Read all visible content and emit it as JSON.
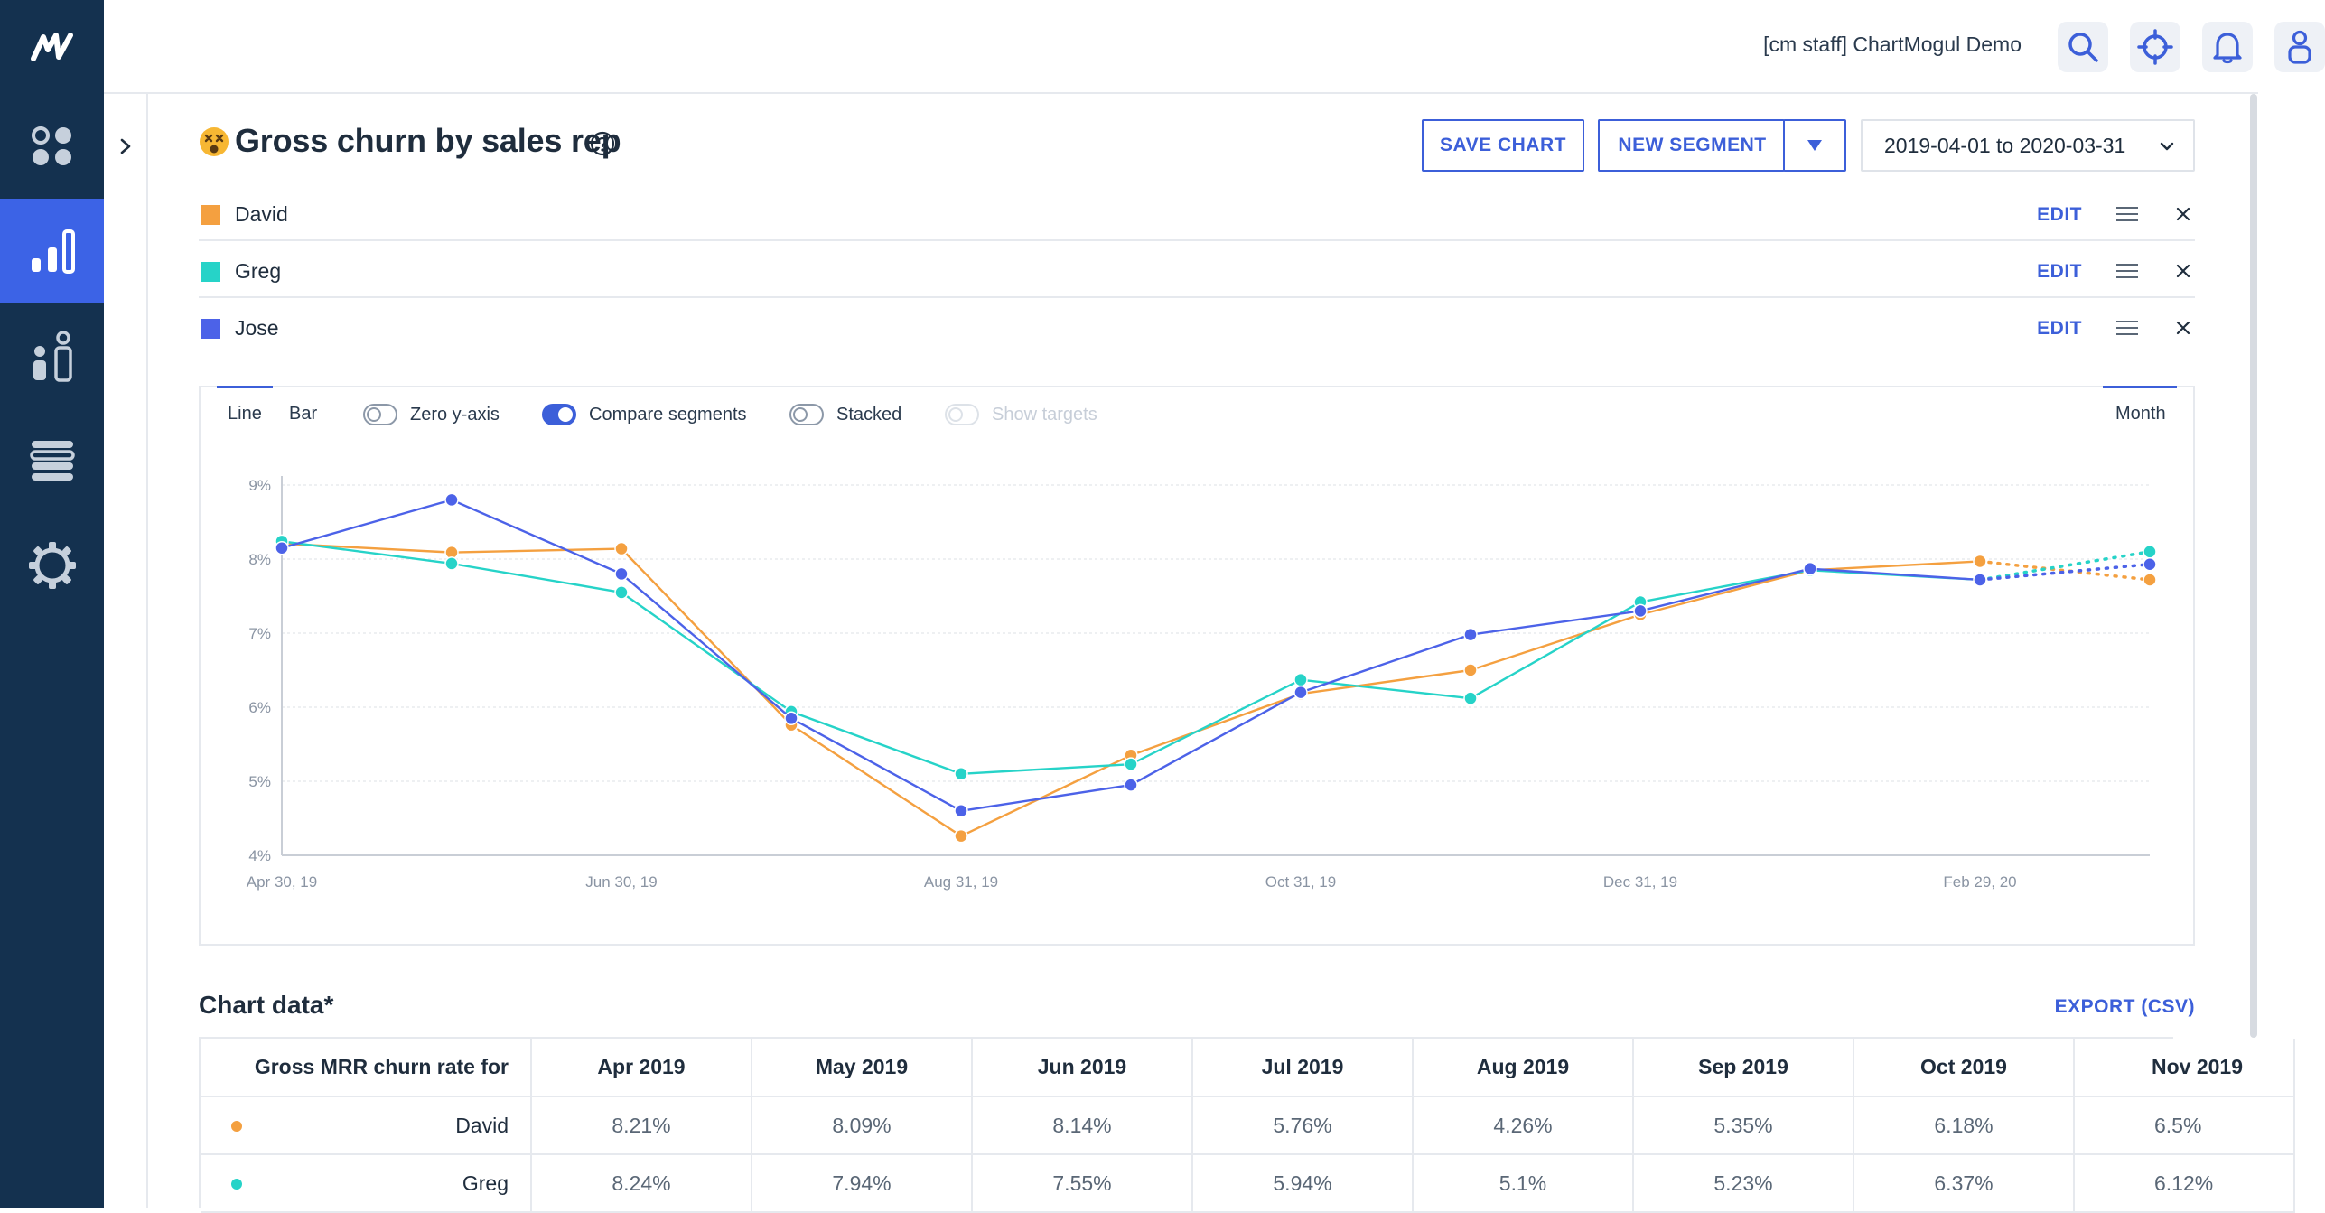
{
  "account": {
    "name": "[cm staff] ChartMogul Demo"
  },
  "nav": {
    "items": [
      {
        "name": "dashboard",
        "icon": "dashboard-icon",
        "active": false
      },
      {
        "name": "reports",
        "icon": "bar-chart-icon",
        "active": true
      },
      {
        "name": "customers",
        "icon": "customers-icon",
        "active": false
      },
      {
        "name": "lists",
        "icon": "list-icon",
        "active": false
      },
      {
        "name": "settings",
        "icon": "gear-icon",
        "active": false
      }
    ]
  },
  "top_icons": [
    "search-icon",
    "crosshair-icon",
    "bell-icon",
    "user-icon"
  ],
  "page": {
    "title": "Gross churn by sales rep",
    "save_label": "SAVE CHART",
    "new_segment_label": "NEW SEGMENT",
    "date_range": "2019-04-01 to 2020-03-31"
  },
  "segments": [
    {
      "name": "David",
      "color": "#f4a040",
      "edit_label": "EDIT"
    },
    {
      "name": "Greg",
      "color": "#26d3c8",
      "edit_label": "EDIT"
    },
    {
      "name": "Jose",
      "color": "#4c62e8",
      "edit_label": "EDIT"
    }
  ],
  "chart_controls": {
    "tab_line": "Line",
    "tab_bar": "Bar",
    "zero_y_axis": "Zero y-axis",
    "compare_segments": "Compare segments",
    "stacked": "Stacked",
    "show_targets": "Show targets",
    "interval": "Month",
    "toggle_states": {
      "zero_y_axis": false,
      "compare_segments": true,
      "stacked": false,
      "show_targets": false
    }
  },
  "chart_data": {
    "type": "line",
    "x": [
      "Apr 30, 19",
      "May 31, 19",
      "Jun 30, 19",
      "Jul 31, 19",
      "Aug 31, 19",
      "Sep 30, 19",
      "Oct 31, 19",
      "Nov 30, 19",
      "Dec 31, 19",
      "Jan 31, 20",
      "Feb 29, 20",
      "Mar 31, 20"
    ],
    "x_tick_labels": [
      "Apr 30, 19",
      "Jun 30, 19",
      "Aug 31, 19",
      "Oct 31, 19",
      "Dec 31, 19",
      "Feb 29, 20"
    ],
    "y_ticks": [
      "4%",
      "5%",
      "6%",
      "7%",
      "8%",
      "9%"
    ],
    "ylim": [
      4,
      9
    ],
    "grid": true,
    "projected_last_point": true,
    "series": [
      {
        "name": "David",
        "color": "#f4a040",
        "values": [
          8.21,
          8.09,
          8.14,
          5.76,
          4.26,
          5.35,
          6.18,
          6.5,
          7.25,
          7.85,
          7.97,
          7.72
        ]
      },
      {
        "name": "Greg",
        "color": "#26d3c8",
        "values": [
          8.24,
          7.94,
          7.55,
          5.94,
          5.1,
          5.23,
          6.37,
          6.12,
          7.42,
          7.85,
          7.72,
          8.1
        ]
      },
      {
        "name": "Jose",
        "color": "#4c62e8",
        "values": [
          8.15,
          8.8,
          7.8,
          5.85,
          4.6,
          4.95,
          6.2,
          6.98,
          7.3,
          7.87,
          7.72,
          7.93
        ]
      }
    ]
  },
  "table": {
    "section_title": "Chart data*",
    "export_label": "EXPORT (CSV)",
    "first_header": "Gross MRR churn rate for",
    "columns": [
      "Apr 2019",
      "May 2019",
      "Jun 2019",
      "Jul 2019",
      "Aug 2019",
      "Sep 2019",
      "Oct 2019",
      "Nov 2019"
    ],
    "rows": [
      {
        "name": "David",
        "color": "#f4a040",
        "values": [
          "8.21%",
          "8.09%",
          "8.14%",
          "5.76%",
          "4.26%",
          "5.35%",
          "6.18%",
          "6.5%"
        ]
      },
      {
        "name": "Greg",
        "color": "#26d3c8",
        "values": [
          "8.24%",
          "7.94%",
          "7.55%",
          "5.94%",
          "5.1%",
          "5.23%",
          "6.37%",
          "6.12%"
        ]
      }
    ]
  }
}
